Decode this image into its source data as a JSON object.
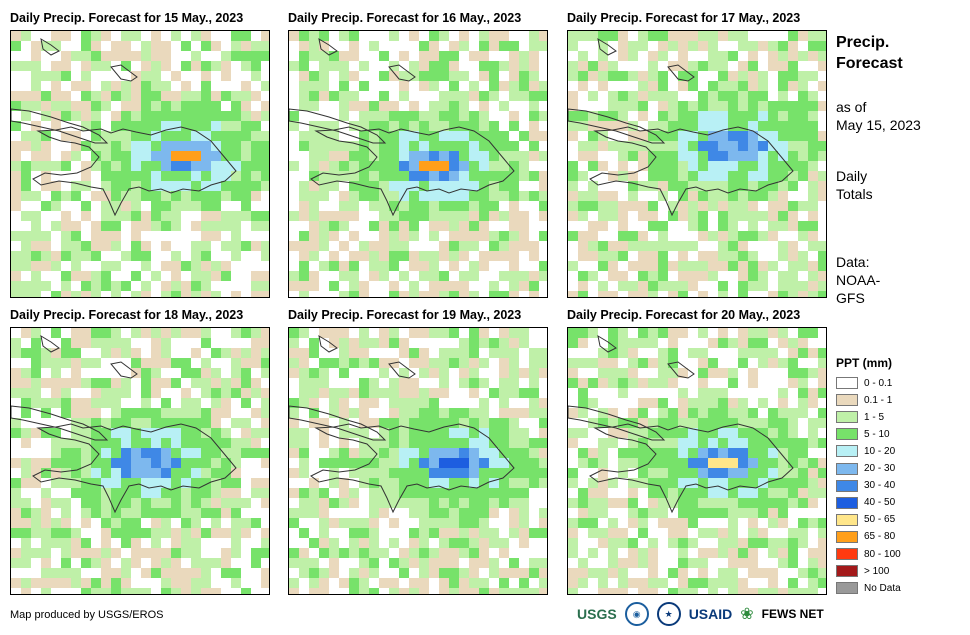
{
  "panels": [
    {
      "title": "Daily Precip. Forecast for 15 May., 2023"
    },
    {
      "title": "Daily Precip. Forecast for 16 May., 2023"
    },
    {
      "title": "Daily Precip. Forecast for 17 May., 2023"
    },
    {
      "title": "Daily Precip. Forecast for 18 May., 2023"
    },
    {
      "title": "Daily Precip. Forecast for 19 May., 2023"
    },
    {
      "title": "Daily Precip. Forecast for 20 May., 2023"
    }
  ],
  "side": {
    "title_line1": "Precip.",
    "title_line2": "Forecast",
    "asof_line1": "as of",
    "asof_line2": "May 15, 2023",
    "totals_line1": "Daily",
    "totals_line2": "Totals",
    "data_line1": "Data:",
    "data_line2": "NOAA-",
    "data_line3": "GFS"
  },
  "legend": {
    "title": "PPT (mm)",
    "items": [
      {
        "label": "0 - 0.1",
        "color": "#ffffff"
      },
      {
        "label": "0.1 - 1",
        "color": "#ead9bd"
      },
      {
        "label": "1 - 5",
        "color": "#bff0a8"
      },
      {
        "label": "5 - 10",
        "color": "#77e26a"
      },
      {
        "label": "10 - 20",
        "color": "#b8f0f5"
      },
      {
        "label": "20 - 30",
        "color": "#7db8ee"
      },
      {
        "label": "30 - 40",
        "color": "#3f88e6"
      },
      {
        "label": "40 - 50",
        "color": "#1d5ee0"
      },
      {
        "label": "50 - 65",
        "color": "#ffe68a"
      },
      {
        "label": "65 - 80",
        "color": "#ff9f1a"
      },
      {
        "label": "80 - 100",
        "color": "#ff3a10"
      },
      {
        "label": "> 100",
        "color": "#a3191a"
      },
      {
        "label": "No Data",
        "color": "#999999"
      }
    ]
  },
  "footer": "Map produced by USGS/EROS",
  "logos": {
    "usgs": "USGS",
    "usaid": "USAID",
    "fewsnet": "FEWS NET"
  }
}
